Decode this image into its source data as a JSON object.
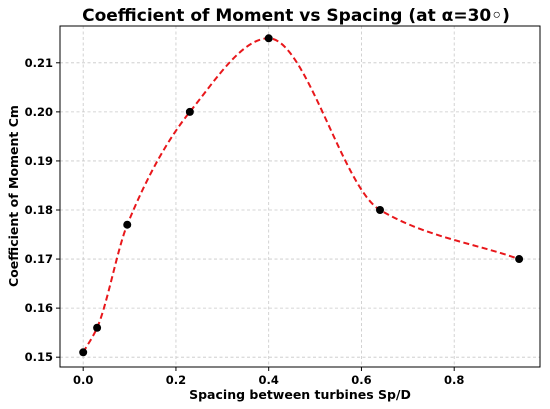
{
  "chart_data": {
    "type": "line",
    "title": "Coefficient of Moment vs Spacing (at α=30◦)",
    "xlabel": "Spacing between turbines Sp/D",
    "ylabel": "Coefficient of Moment Cm",
    "xlim": [
      -0.05,
      0.985
    ],
    "ylim": [
      0.148,
      0.2175
    ],
    "xticks": [
      0.0,
      0.2,
      0.4,
      0.6,
      0.8
    ],
    "xtick_labels": [
      "0.0",
      "0.2",
      "0.4",
      "0.6",
      "0.8"
    ],
    "yticks": [
      0.15,
      0.16,
      0.17,
      0.18,
      0.19,
      0.2,
      0.21
    ],
    "ytick_labels": [
      "0.15",
      "0.16",
      "0.17",
      "0.18",
      "0.19",
      "0.20",
      "0.21"
    ],
    "grid": true,
    "series": [
      {
        "x": [
          0.0,
          0.03,
          0.095,
          0.23,
          0.4,
          0.64,
          0.94
        ],
        "y": [
          0.151,
          0.156,
          0.177,
          0.2,
          0.215,
          0.18,
          0.17
        ],
        "marker_color": "#000000",
        "line_color": "#e8171b",
        "line_style": "dashed"
      }
    ]
  }
}
